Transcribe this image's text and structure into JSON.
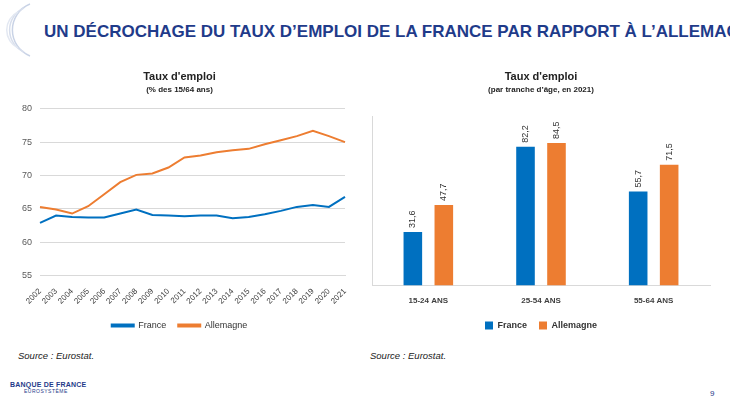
{
  "header": {
    "title": "UN DÉCROCHAGE DU TAUX D’EMPLOI DE LA FRANCE PAR RAPPORT À L’ALLEMAGNE"
  },
  "footer": {
    "logo": [
      "BANQUE DE FRANCE",
      "EUROSYSTÈME"
    ],
    "page": "9"
  },
  "chart_data": [
    {
      "type": "line",
      "title": "Taux d'emploi",
      "subtitle": "(% des 15/64 ans)",
      "source": "Source : Eurostat.",
      "categories": [
        "2002",
        "2003",
        "2004",
        "2005",
        "2006",
        "2007",
        "2008",
        "2009",
        "2010",
        "2011",
        "2012",
        "2013",
        "2014",
        "2015",
        "2016",
        "2017",
        "2018",
        "2019",
        "2020",
        "2021"
      ],
      "series": [
        {
          "name": "France",
          "color": "#0070c0",
          "values": [
            62.9,
            64.0,
            63.8,
            63.7,
            63.7,
            64.3,
            64.9,
            64.1,
            64.0,
            63.9,
            64.0,
            64.0,
            63.6,
            63.8,
            64.2,
            64.7,
            65.3,
            65.6,
            65.3,
            66.8
          ]
        },
        {
          "name": "Allemagne",
          "color": "#ed7d31",
          "values": [
            65.3,
            64.9,
            64.3,
            65.4,
            67.2,
            69.0,
            70.1,
            70.3,
            71.2,
            72.7,
            73.0,
            73.5,
            73.8,
            74.0,
            74.7,
            75.3,
            75.9,
            76.7,
            75.9,
            75.0
          ]
        }
      ],
      "ylim": [
        55,
        80
      ],
      "yticks": [
        55,
        60,
        65,
        70,
        75,
        80
      ],
      "grid": true,
      "legend": "bottom"
    },
    {
      "type": "bar",
      "title": "Taux d'emploi",
      "subtitle": "(par tranche d’âge, en 2021)",
      "source": "Source : Eurostat.",
      "categories": [
        "15-24 ANS",
        "25-54 ANS",
        "55-64 ANS"
      ],
      "series": [
        {
          "name": "France",
          "color": "#0070c0",
          "values": [
            31.6,
            82.2,
            55.7
          ],
          "value_labels": [
            "31,6",
            "82,2",
            "55,7"
          ]
        },
        {
          "name": "Allemagne",
          "color": "#ed7d31",
          "values": [
            47.7,
            84.5,
            71.5
          ],
          "value_labels": [
            "47,7",
            "84,5",
            "71,5"
          ]
        }
      ],
      "ylim": [
        0,
        100
      ],
      "grid": false,
      "legend": "bottom",
      "data_labels": true,
      "tick_labels": "x"
    }
  ]
}
